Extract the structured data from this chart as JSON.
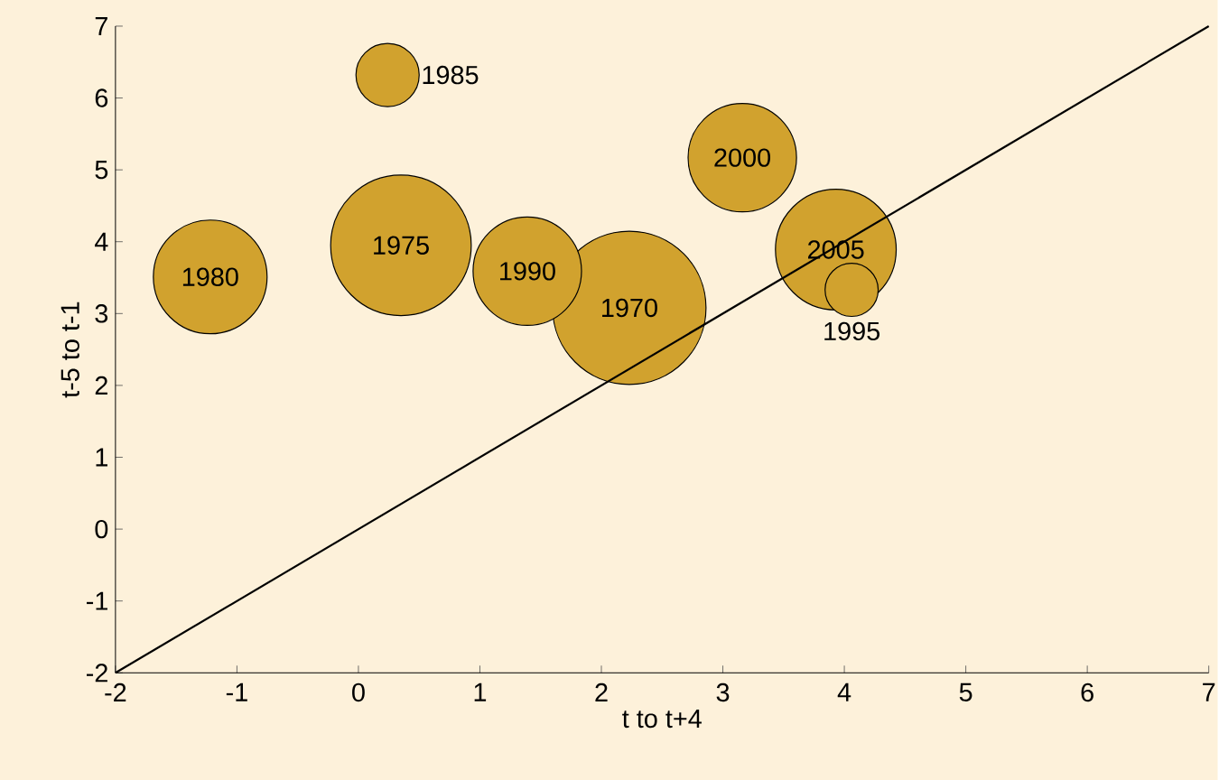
{
  "chart_data": {
    "type": "bubble",
    "xlabel": "t to t+4",
    "ylabel": "t-5 to t-1",
    "xlim": [
      -2,
      7
    ],
    "ylim": [
      -2,
      7
    ],
    "xticks": [
      -2,
      -1,
      0,
      1,
      2,
      3,
      4,
      5,
      6,
      7
    ],
    "yticks": [
      -2,
      -1,
      0,
      1,
      2,
      3,
      4,
      5,
      6,
      7
    ],
    "series": [
      {
        "color": "#d1a22e",
        "x": [
          2.23,
          0.35,
          -1.22,
          0.24,
          1.39,
          3.16,
          3.93,
          4.06
        ],
        "values": [
          3.08,
          3.95,
          3.51,
          6.32,
          3.59,
          5.17,
          3.89,
          3.33
        ],
        "sizes": [
          1,
          0.84,
          0.55,
          0.17,
          0.5,
          0.5,
          0.62,
          0.12
        ]
      },
      {
        "type": "line",
        "color": "#000000",
        "x": [
          -2,
          7
        ],
        "values": [
          -2,
          7
        ]
      }
    ],
    "annotations": [
      {
        "text": "1970",
        "x": 2.23,
        "y": 3.08
      },
      {
        "text": "1975",
        "x": 0.35,
        "y": 3.95
      },
      {
        "text": "1980",
        "x": -1.22,
        "y": 3.51
      },
      {
        "text": "1985",
        "x": 0.24,
        "y": 6.32
      },
      {
        "text": "1990",
        "x": 1.39,
        "y": 3.59
      },
      {
        "text": "2000",
        "x": 3.16,
        "y": 5.17
      },
      {
        "text": "2005",
        "x": 3.93,
        "y": 3.89
      },
      {
        "text": "1995",
        "x": 4.06,
        "y": 3.33
      }
    ]
  }
}
